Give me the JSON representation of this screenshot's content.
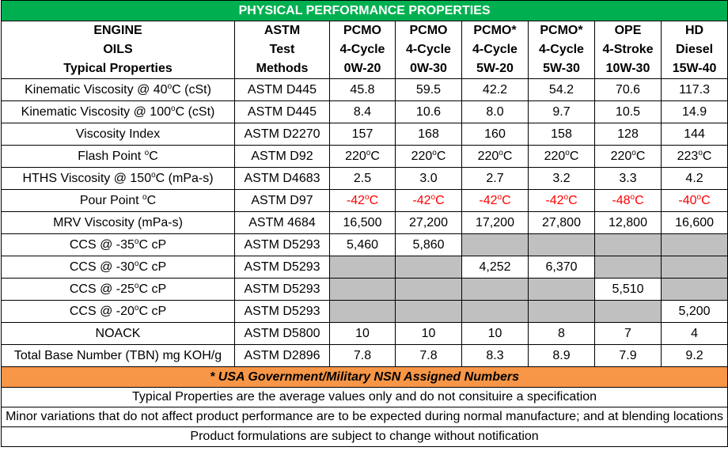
{
  "title": "PHYSICAL PERFORMANCE PROPERTIES",
  "header": {
    "first": [
      "ENGINE",
      "OILS",
      "Typical Properties"
    ],
    "astm": [
      "ASTM",
      "Test",
      "Methods"
    ],
    "columns": [
      [
        "PCMO",
        "4-Cycle",
        "0W-20"
      ],
      [
        "PCMO",
        "4-Cycle",
        "0W-30"
      ],
      [
        "PCMO*",
        "4-Cycle",
        "5W-20"
      ],
      [
        "PCMO*",
        "4-Cycle",
        "5W-30"
      ],
      [
        "OPE",
        "4-Stroke",
        "10W-30"
      ],
      [
        "HD",
        "Diesel",
        "15W-40"
      ]
    ]
  },
  "rows": [
    {
      "name": [
        "Kinematic Viscosity @ 40",
        "o",
        "C (cSt)"
      ],
      "method": "ASTM D445",
      "values": [
        "45.8",
        "59.5",
        "42.2",
        "54.2",
        "70.6",
        "117.3"
      ],
      "temp": false,
      "neg": false
    },
    {
      "name": [
        "Kinematic Viscosity @ 100",
        "o",
        "C (cSt)"
      ],
      "method": "ASTM D445",
      "values": [
        "8.4",
        "10.6",
        "8.0",
        "9.7",
        "10.5",
        "14.9"
      ],
      "temp": false,
      "neg": false
    },
    {
      "name": [
        "Viscosity Index",
        "",
        ""
      ],
      "method": "ASTM D2270",
      "values": [
        "157",
        "168",
        "160",
        "158",
        "128",
        "144"
      ],
      "temp": false,
      "neg": false
    },
    {
      "name": [
        "Flash Point ",
        "o",
        "C"
      ],
      "method": "ASTM D92",
      "values": [
        "220",
        "220",
        "220",
        "220",
        "220",
        "223"
      ],
      "temp": true,
      "neg": false
    },
    {
      "name": [
        "HTHS Viscosity @ 150",
        "o",
        "C (mPa-s)"
      ],
      "method": "ASTM D4683",
      "values": [
        "2.5",
        "3.0",
        "2.7",
        "3.2",
        "3.3",
        "4.2"
      ],
      "temp": false,
      "neg": false
    },
    {
      "name": [
        "Pour Point ",
        "o",
        "C"
      ],
      "method": "ASTM D97",
      "values": [
        "-42",
        "-42",
        "-42",
        "-42",
        "-48",
        "-40"
      ],
      "temp": true,
      "neg": true
    },
    {
      "name": [
        "MRV Viscosity (mPa-s)",
        "",
        ""
      ],
      "method": "ASTM 4684",
      "values": [
        "16,500",
        "27,200",
        "17,200",
        "27,800",
        "12,800",
        "16,600"
      ],
      "temp": false,
      "neg": false
    },
    {
      "name": [
        "CCS @ -35",
        "o",
        "C cP"
      ],
      "method": "ASTM D5293",
      "values": [
        "5,460",
        "5,860",
        "",
        "",
        "",
        ""
      ],
      "temp": false,
      "neg": false
    },
    {
      "name": [
        "CCS @ -30",
        "o",
        "C cP"
      ],
      "method": "ASTM D5293",
      "values": [
        "",
        "",
        "4,252",
        "6,370",
        "",
        ""
      ],
      "temp": false,
      "neg": false
    },
    {
      "name": [
        "CCS @ -25",
        "o",
        "C cP"
      ],
      "method": "ASTM D5293",
      "values": [
        "",
        "",
        "",
        "",
        "5,510",
        ""
      ],
      "temp": false,
      "neg": false
    },
    {
      "name": [
        "CCS @ -20",
        "o",
        "C cP"
      ],
      "method": "ASTM D5293",
      "values": [
        "",
        "",
        "",
        "",
        "",
        "5,200"
      ],
      "temp": false,
      "neg": false
    },
    {
      "name": [
        "NOACK",
        "",
        ""
      ],
      "method": "ASTM D5800",
      "values": [
        "10",
        "10",
        "10",
        "8",
        "7",
        "4"
      ],
      "temp": false,
      "neg": false
    },
    {
      "name": [
        "Total Base Number (TBN) mg KOH/g",
        "",
        ""
      ],
      "method": "ASTM D2896",
      "values": [
        "7.8",
        "7.8",
        "8.3",
        "8.9",
        "7.9",
        "9.2"
      ],
      "temp": false,
      "neg": false
    }
  ],
  "degree_mark": "o",
  "degree_unit": "C",
  "nsn_note": "* USA Government/Military NSN Assigned Numbers",
  "notes": [
    "Typical Properties are the average values only and do not consituire a specification",
    "Minor variations that do not affect product performance are to be expected during normal manufacture; and at blending locations",
    "Product formulations are subject to change without notification"
  ],
  "colors": {
    "title_bg": "#00b050",
    "nsn_bg": "#f79646",
    "empty_cell": "#c0c0c0",
    "negative_text": "#ff0000"
  }
}
